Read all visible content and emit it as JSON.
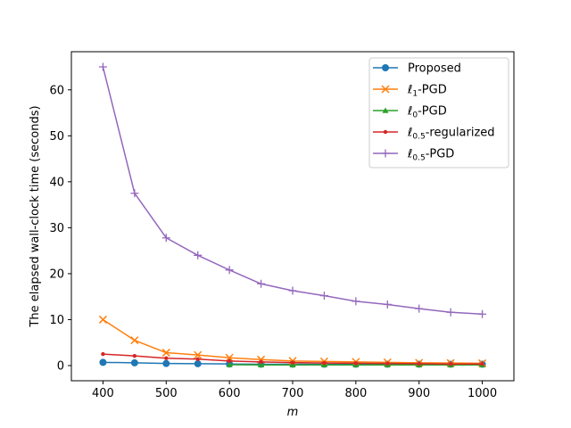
{
  "chart_data": {
    "type": "line",
    "title": "",
    "xlabel": "m",
    "ylabel": "The elapsed wall-clock time (seconds)",
    "xlim": [
      350,
      1050
    ],
    "ylim": [
      -3.3,
      68.3
    ],
    "xticks": [
      400,
      500,
      600,
      700,
      800,
      900,
      1000
    ],
    "yticks": [
      0,
      10,
      20,
      30,
      40,
      50,
      60
    ],
    "grid": false,
    "legend_position": "top-right",
    "series": [
      {
        "name": "Proposed",
        "color": "#1f77b4",
        "marker": "circle",
        "x": [
          400,
          450,
          500,
          550,
          600,
          650,
          700,
          750,
          800,
          850,
          900,
          950,
          1000
        ],
        "y": [
          0.7,
          0.6,
          0.45,
          0.4,
          0.35,
          0.3,
          0.3,
          0.3,
          0.3,
          0.3,
          0.3,
          0.3,
          0.3
        ]
      },
      {
        "name": "ℓ1-PGD",
        "name_base": "ℓ",
        "name_sub": "1",
        "name_suffix": "-PGD",
        "color": "#ff7f0e",
        "marker": "x",
        "x": [
          400,
          450,
          500,
          550,
          600,
          650,
          700,
          750,
          800,
          850,
          900,
          950,
          1000
        ],
        "y": [
          10.0,
          5.5,
          2.8,
          2.3,
          1.7,
          1.3,
          1.0,
          0.9,
          0.8,
          0.7,
          0.6,
          0.55,
          0.5
        ]
      },
      {
        "name": "ℓ0-PGD",
        "name_base": "ℓ",
        "name_sub": "0",
        "name_suffix": "-PGD",
        "color": "#2ca02c",
        "marker": "triangle",
        "x": [
          600,
          650,
          700,
          750,
          800,
          850,
          900,
          950,
          1000
        ],
        "y": [
          0.2,
          0.15,
          0.15,
          0.15,
          0.15,
          0.15,
          0.15,
          0.15,
          0.15
        ]
      },
      {
        "name": "ℓ0.5-regularized",
        "name_base": "ℓ",
        "name_sub": "0.5",
        "name_suffix": "-regularized",
        "color": "#d62728",
        "marker": "dot",
        "x": [
          400,
          450,
          500,
          550,
          600,
          650,
          700,
          750,
          800,
          850,
          900,
          950,
          1000
        ],
        "y": [
          2.5,
          2.1,
          1.6,
          1.4,
          1.0,
          0.8,
          0.65,
          0.55,
          0.5,
          0.45,
          0.4,
          0.35,
          0.35
        ]
      },
      {
        "name": "ℓ0.5-PGD",
        "name_base": "ℓ",
        "name_sub": "0.5",
        "name_suffix": "-PGD",
        "color": "#9467bd",
        "marker": "plus",
        "x": [
          400,
          450,
          500,
          550,
          600,
          650,
          700,
          750,
          800,
          850,
          900,
          950,
          1000
        ],
        "y": [
          65.0,
          37.5,
          27.8,
          24.0,
          20.8,
          17.8,
          16.3,
          15.2,
          14.0,
          13.3,
          12.4,
          11.6,
          11.2
        ]
      }
    ]
  }
}
